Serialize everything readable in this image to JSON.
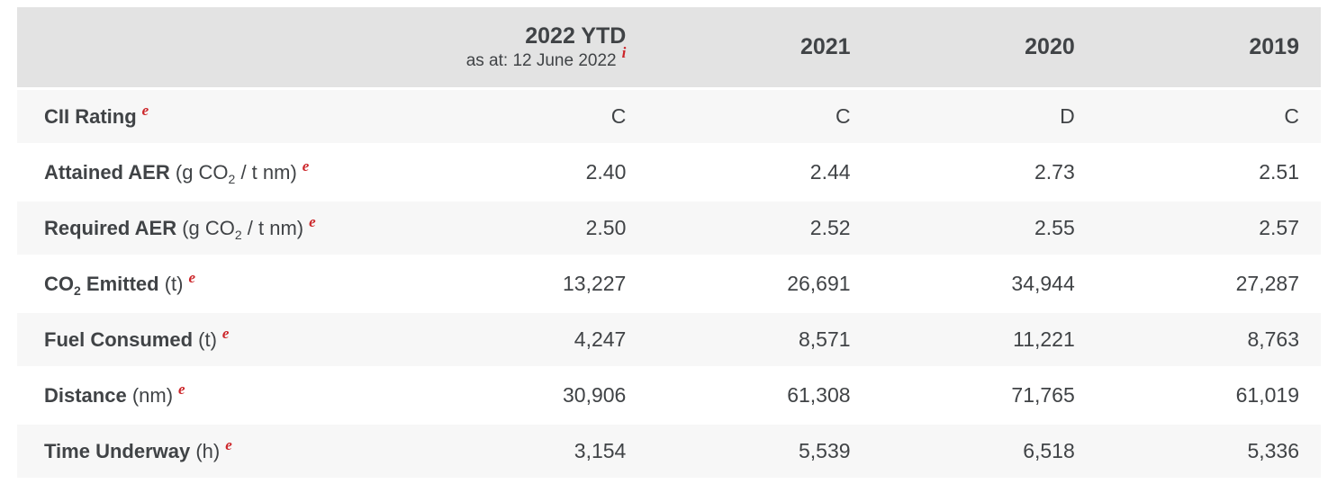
{
  "colors": {
    "header_bg": "#e3e3e3",
    "row_alt_bg": "#f7f7f7",
    "row_bg": "#ffffff",
    "text": "#404346",
    "accent_red": "#cc2529"
  },
  "table": {
    "header": {
      "columns": [
        {
          "title": "2022 YTD",
          "subtitle": "as at: 12 June 2022",
          "note": "i"
        },
        {
          "title": "2021"
        },
        {
          "title": "2020"
        },
        {
          "title": "2019"
        }
      ]
    },
    "rows": [
      {
        "label_pre": "CII Rating",
        "label_sub": "",
        "label_post": "",
        "unit_pre": "",
        "unit_sub": "",
        "unit_post": "",
        "note": "e",
        "values": [
          "C",
          "C",
          "D",
          "C"
        ]
      },
      {
        "label_pre": "Attained AER",
        "label_sub": "",
        "label_post": "",
        "unit_pre": " (g CO",
        "unit_sub": "2",
        "unit_post": " / t nm)",
        "note": "e",
        "values": [
          "2.40",
          "2.44",
          "2.73",
          "2.51"
        ]
      },
      {
        "label_pre": "Required AER",
        "label_sub": "",
        "label_post": "",
        "unit_pre": " (g CO",
        "unit_sub": "2",
        "unit_post": " / t nm)",
        "note": "e",
        "values": [
          "2.50",
          "2.52",
          "2.55",
          "2.57"
        ]
      },
      {
        "label_pre": "CO",
        "label_sub": "2",
        "label_post": " Emitted",
        "unit_pre": " (t)",
        "unit_sub": "",
        "unit_post": "",
        "note": "e",
        "values": [
          "13,227",
          "26,691",
          "34,944",
          "27,287"
        ]
      },
      {
        "label_pre": "Fuel Consumed",
        "label_sub": "",
        "label_post": "",
        "unit_pre": " (t)",
        "unit_sub": "",
        "unit_post": "",
        "note": "e",
        "values": [
          "4,247",
          "8,571",
          "11,221",
          "8,763"
        ]
      },
      {
        "label_pre": "Distance",
        "label_sub": "",
        "label_post": "",
        "unit_pre": " (nm)",
        "unit_sub": "",
        "unit_post": "",
        "note": "e",
        "values": [
          "30,906",
          "61,308",
          "71,765",
          "61,019"
        ]
      },
      {
        "label_pre": "Time Underway",
        "label_sub": "",
        "label_post": "",
        "unit_pre": " (h)",
        "unit_sub": "",
        "unit_post": "",
        "note": "e",
        "values": [
          "3,154",
          "5,539",
          "6,518",
          "5,336"
        ]
      }
    ]
  }
}
